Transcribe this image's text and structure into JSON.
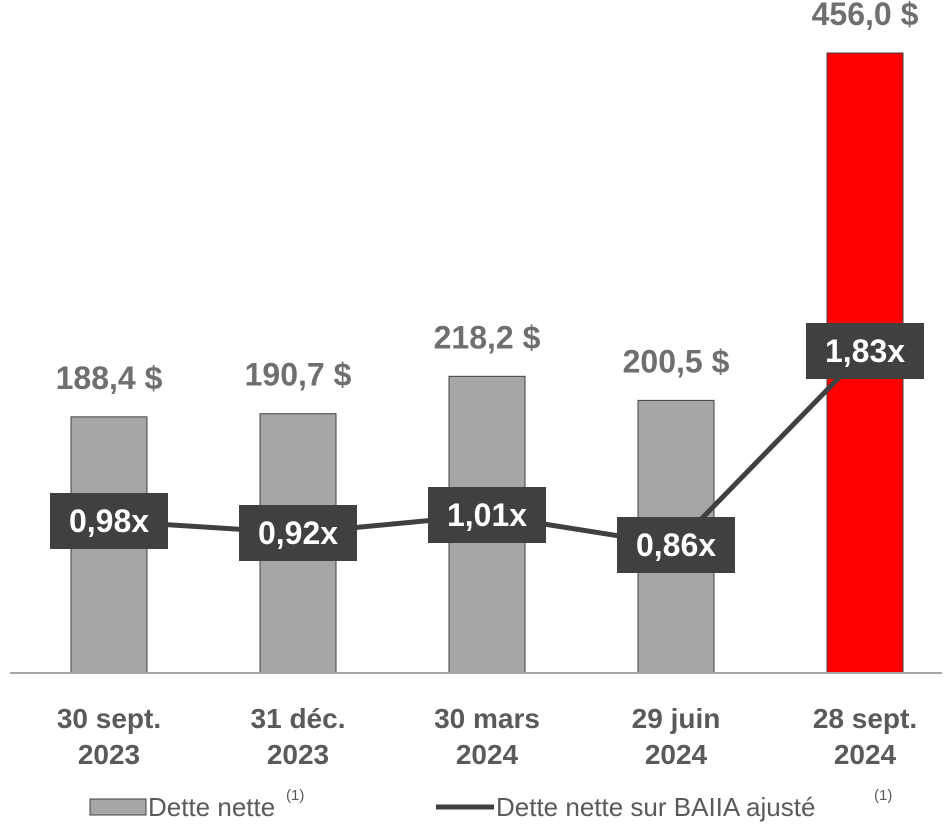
{
  "chart_data": {
    "type": "bar",
    "categories": [
      [
        "30 sept.",
        "2023"
      ],
      [
        "31 déc.",
        "2023"
      ],
      [
        "30 mars",
        "2024"
      ],
      [
        "29 juin",
        "2024"
      ],
      [
        "28 sept.",
        "2024"
      ]
    ],
    "series": [
      {
        "name": "Dette nette",
        "kind": "bar",
        "values": [
          188.4,
          190.7,
          218.2,
          200.5,
          456.0
        ],
        "labels": [
          "188,4 $",
          "190,7 $",
          "218,2 $",
          "200,5 $",
          "456,0 $"
        ]
      },
      {
        "name": "Dette nette sur BAIIA ajusté",
        "kind": "line",
        "values": [
          0.98,
          0.92,
          1.01,
          0.86,
          1.83
        ],
        "labels": [
          "0,98x",
          "0,92x",
          "1,01x",
          "0,86x",
          "1,83x"
        ]
      }
    ],
    "highlight_index": 4,
    "colors": {
      "bar": "#a6a6a6",
      "bar_highlight": "#ff0000",
      "line": "#404040",
      "label_box": "#404040",
      "value_text": "#6f6f6f",
      "axis": "#a6a6a6"
    },
    "legend": {
      "position": "bottom",
      "footnote": "(1)",
      "items": [
        {
          "label": "Dette nette",
          "marker": "bar"
        },
        {
          "label": "Dette nette sur BAIIA ajusté",
          "marker": "line"
        }
      ]
    },
    "grid": false
  }
}
